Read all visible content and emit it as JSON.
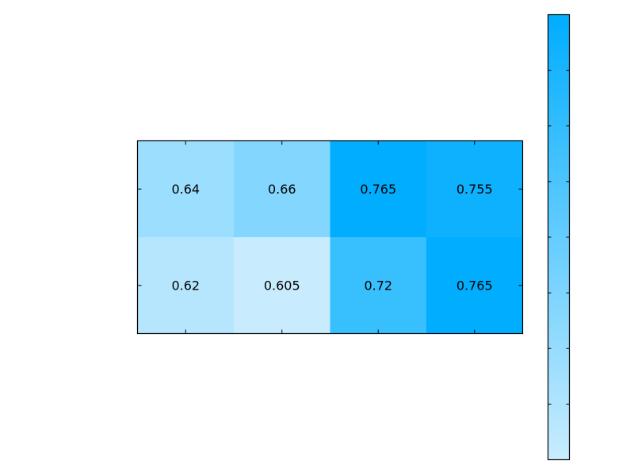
{
  "chart_data": {
    "type": "heatmap",
    "rows": 2,
    "columns": 4,
    "values": [
      [
        0.64,
        0.66,
        0.765,
        0.755
      ],
      [
        0.62,
        0.605,
        0.72,
        0.765
      ]
    ],
    "labels": [
      [
        "0.64",
        "0.66",
        "0.765",
        "0.755"
      ],
      [
        "0.62",
        "0.605",
        "0.72",
        "0.765"
      ]
    ],
    "title": "",
    "xlabel": "",
    "ylabel": "",
    "colorbar": {
      "range": [
        0.605,
        0.765
      ],
      "tick_count": 9,
      "tick_labels_shown": false
    },
    "colors": {
      "low": "#c8ecfe",
      "high": "#00adfe",
      "frame": "#000000"
    }
  }
}
